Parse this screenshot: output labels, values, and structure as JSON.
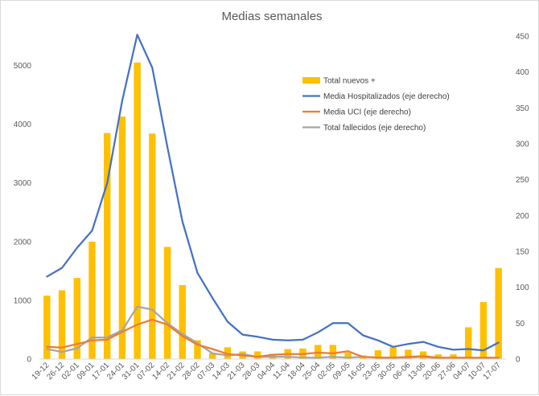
{
  "chart_data": {
    "type": "bar+line",
    "title": "Medias semanales",
    "categories": [
      "19-12",
      "26-12",
      "02-01",
      "09-01",
      "17-01",
      "24-01",
      "31-01",
      "07-02",
      "14-02",
      "21-02",
      "28-02",
      "07-03",
      "14-03",
      "21-03",
      "28-03",
      "04-04",
      "11-04",
      "18-04",
      "25-04",
      "02-05",
      "09-05",
      "16-05",
      "23-05",
      "30-05",
      "06-06",
      "13-06",
      "20-06",
      "27-06",
      "04-07",
      "10-07",
      "17-07"
    ],
    "y_left": {
      "min": 0,
      "max": 5500,
      "ticks": [
        0,
        1000,
        2000,
        3000,
        4000,
        5000
      ]
    },
    "y_right": {
      "min": 0,
      "max": 450,
      "ticks": [
        0,
        50,
        100,
        150,
        200,
        250,
        300,
        350,
        400,
        450
      ]
    },
    "legend_position": "top-right",
    "gridlines": false,
    "series": [
      {
        "name": "Total nuevos +",
        "kind": "bar",
        "axis": "left",
        "color": "#FFC000",
        "values": [
          1080,
          1170,
          1380,
          2000,
          3850,
          4130,
          5050,
          3840,
          1910,
          1260,
          320,
          100,
          200,
          130,
          130,
          90,
          170,
          180,
          240,
          240,
          110,
          60,
          150,
          200,
          160,
          130,
          80,
          80,
          540,
          970,
          1550
        ]
      },
      {
        "name": "Media Hospitalizados (eje derecho)",
        "kind": "line",
        "axis": "right",
        "color": "#4472C4",
        "values": [
          115,
          127,
          155,
          179,
          245,
          360,
          452,
          406,
          296,
          192,
          120,
          85,
          52,
          34,
          31,
          27,
          26,
          27,
          37,
          50,
          50,
          33,
          26,
          17,
          21,
          24,
          17,
          13,
          14,
          12,
          23
        ]
      },
      {
        "name": "Media UCI (eje derecho)",
        "kind": "line",
        "axis": "right",
        "color": "#ED7D31",
        "values": [
          17,
          16,
          21,
          26,
          27,
          38,
          48,
          55,
          48,
          32,
          20,
          14,
          7,
          5,
          3,
          6,
          7,
          7,
          9,
          8,
          11,
          3,
          2,
          2,
          3,
          4,
          2,
          2,
          2,
          2,
          2
        ]
      },
      {
        "name": "Total fallecidos (eje derecho)",
        "kind": "line",
        "axis": "right",
        "color": "#A5A5A5",
        "values": [
          14,
          10,
          15,
          30,
          30,
          40,
          73,
          69,
          50,
          35,
          22,
          8,
          5,
          7,
          3,
          3,
          3,
          2,
          2,
          3,
          2,
          3,
          2,
          2,
          2,
          3,
          1,
          1,
          1,
          1,
          1
        ]
      }
    ]
  }
}
